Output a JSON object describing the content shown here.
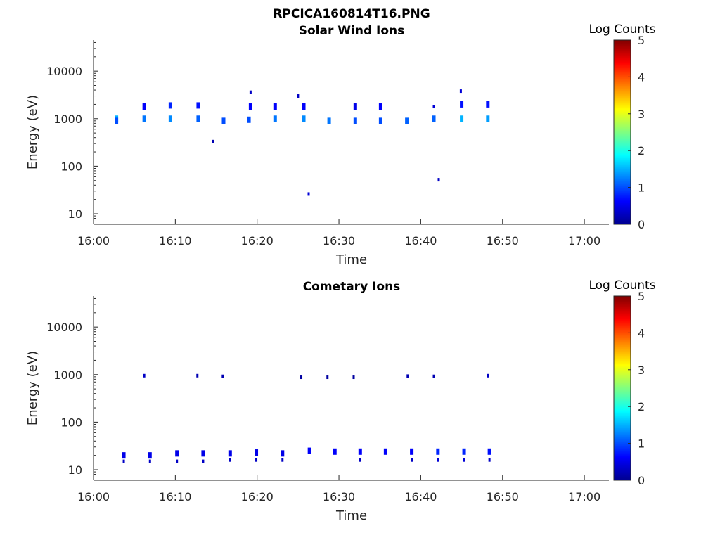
{
  "figure": {
    "title": "RPCICA160814T16.PNG",
    "colorbar_colors": [
      "#00008f",
      "#0000ff",
      "#0080ff",
      "#00ffff",
      "#80ff80",
      "#ffff00",
      "#ff8000",
      "#ff0000",
      "#800000"
    ]
  },
  "chart_data": [
    {
      "type": "heatmap",
      "title": "Solar Wind Ions",
      "xlabel": "Time",
      "ylabel": "Energy (eV)",
      "yscale": "log",
      "ylim": [
        6,
        45000
      ],
      "xlim": [
        "16:00",
        "17:03"
      ],
      "x_ticks": [
        "16:00",
        "16:10",
        "16:20",
        "16:30",
        "16:40",
        "16:50",
        "17:00"
      ],
      "y_ticks": [
        "10",
        "100",
        "1000",
        "10000"
      ],
      "colorbar": {
        "label": "Log Counts",
        "range": [
          0,
          5
        ],
        "ticks": [
          "0",
          "1",
          "2",
          "3",
          "4",
          "5"
        ]
      },
      "cells": [
        {
          "t": "16:02.8",
          "e": 1000,
          "v": 1.5
        },
        {
          "t": "16:02.8",
          "e": 900,
          "v": 1.0
        },
        {
          "t": "16:06.2",
          "e": 1000,
          "v": 1.2
        },
        {
          "t": "16:06.2",
          "e": 1800,
          "v": 0.6
        },
        {
          "t": "16:09.4",
          "e": 1000,
          "v": 1.3
        },
        {
          "t": "16:09.4",
          "e": 1900,
          "v": 0.8
        },
        {
          "t": "16:12.8",
          "e": 1000,
          "v": 1.1
        },
        {
          "t": "16:12.8",
          "e": 1900,
          "v": 0.7
        },
        {
          "t": "16:14.6",
          "e": 330,
          "v": 0.2
        },
        {
          "t": "16:15.9",
          "e": 900,
          "v": 1.0
        },
        {
          "t": "16:19.0",
          "e": 950,
          "v": 1.0
        },
        {
          "t": "16:19.2",
          "e": 1800,
          "v": 0.6
        },
        {
          "t": "16:19.2",
          "e": 3600,
          "v": 0.3
        },
        {
          "t": "16:22.2",
          "e": 1000,
          "v": 1.2
        },
        {
          "t": "16:22.2",
          "e": 1800,
          "v": 0.6
        },
        {
          "t": "16:25.0",
          "e": 3000,
          "v": 0.3
        },
        {
          "t": "16:25.7",
          "e": 1000,
          "v": 1.3
        },
        {
          "t": "16:25.7",
          "e": 1800,
          "v": 0.6
        },
        {
          "t": "16:26.3",
          "e": 26,
          "v": 0.4
        },
        {
          "t": "16:28.8",
          "e": 900,
          "v": 1.2
        },
        {
          "t": "16:32.0",
          "e": 900,
          "v": 1.0
        },
        {
          "t": "16:32.0",
          "e": 1800,
          "v": 0.5
        },
        {
          "t": "16:35.1",
          "e": 900,
          "v": 1.0
        },
        {
          "t": "16:35.1",
          "e": 1800,
          "v": 0.6
        },
        {
          "t": "16:38.3",
          "e": 900,
          "v": 1.1
        },
        {
          "t": "16:41.6",
          "e": 1000,
          "v": 1.1
        },
        {
          "t": "16:41.6",
          "e": 1800,
          "v": 0.4
        },
        {
          "t": "16:42.2",
          "e": 52,
          "v": 0.3
        },
        {
          "t": "16:45.0",
          "e": 1000,
          "v": 1.5
        },
        {
          "t": "16:45.0",
          "e": 2000,
          "v": 0.7
        },
        {
          "t": "16:44.9",
          "e": 3800,
          "v": 0.4
        },
        {
          "t": "16:48.2",
          "e": 1000,
          "v": 1.4
        },
        {
          "t": "16:48.2",
          "e": 2000,
          "v": 0.7
        }
      ]
    },
    {
      "type": "heatmap",
      "title": "Cometary Ions",
      "xlabel": "Time",
      "ylabel": "Energy (eV)",
      "yscale": "log",
      "ylim": [
        6,
        45000
      ],
      "xlim": [
        "16:00",
        "17:03"
      ],
      "x_ticks": [
        "16:00",
        "16:10",
        "16:20",
        "16:30",
        "16:40",
        "16:50",
        "17:00"
      ],
      "y_ticks": [
        "10",
        "100",
        "1000",
        "10000"
      ],
      "colorbar": {
        "label": "Log Counts",
        "range": [
          0,
          5
        ],
        "ticks": [
          "0",
          "1",
          "2",
          "3",
          "4",
          "5"
        ]
      },
      "cells": [
        {
          "t": "16:03.7",
          "e": 20,
          "v": 0.5
        },
        {
          "t": "16:03.7",
          "e": 15,
          "v": 0.3
        },
        {
          "t": "16:06.9",
          "e": 20,
          "v": 0.5
        },
        {
          "t": "16:06.9",
          "e": 15,
          "v": 0.3
        },
        {
          "t": "16:10.2",
          "e": 22,
          "v": 0.5
        },
        {
          "t": "16:10.2",
          "e": 15,
          "v": 0.3
        },
        {
          "t": "16:13.4",
          "e": 22,
          "v": 0.5
        },
        {
          "t": "16:13.4",
          "e": 15,
          "v": 0.3
        },
        {
          "t": "16:16.7",
          "e": 22,
          "v": 0.5
        },
        {
          "t": "16:16.7",
          "e": 16,
          "v": 0.3
        },
        {
          "t": "16:19.9",
          "e": 23,
          "v": 0.5
        },
        {
          "t": "16:19.9",
          "e": 16,
          "v": 0.3
        },
        {
          "t": "16:23.1",
          "e": 22,
          "v": 0.5
        },
        {
          "t": "16:23.1",
          "e": 16,
          "v": 0.3
        },
        {
          "t": "16:26.4",
          "e": 25,
          "v": 0.6
        },
        {
          "t": "16:29.5",
          "e": 24,
          "v": 0.6
        },
        {
          "t": "16:32.6",
          "e": 24,
          "v": 0.6
        },
        {
          "t": "16:32.6",
          "e": 16,
          "v": 0.3
        },
        {
          "t": "16:35.7",
          "e": 24,
          "v": 0.6
        },
        {
          "t": "16:38.9",
          "e": 24,
          "v": 0.6
        },
        {
          "t": "16:38.9",
          "e": 16,
          "v": 0.3
        },
        {
          "t": "16:42.1",
          "e": 24,
          "v": 0.8
        },
        {
          "t": "16:42.1",
          "e": 16,
          "v": 0.4
        },
        {
          "t": "16:45.3",
          "e": 24,
          "v": 0.8
        },
        {
          "t": "16:45.3",
          "e": 16,
          "v": 0.4
        },
        {
          "t": "16:48.4",
          "e": 24,
          "v": 0.7
        },
        {
          "t": "16:48.4",
          "e": 16,
          "v": 0.3
        },
        {
          "t": "16:06.2",
          "e": 950,
          "v": 0.3
        },
        {
          "t": "16:12.7",
          "e": 950,
          "v": 0.2
        },
        {
          "t": "16:15.8",
          "e": 920,
          "v": 0.2
        },
        {
          "t": "16:25.4",
          "e": 880,
          "v": 0.1
        },
        {
          "t": "16:28.6",
          "e": 880,
          "v": 0.1
        },
        {
          "t": "16:31.8",
          "e": 880,
          "v": 0.1
        },
        {
          "t": "16:38.4",
          "e": 930,
          "v": 0.2
        },
        {
          "t": "16:41.6",
          "e": 920,
          "v": 0.2
        },
        {
          "t": "16:48.2",
          "e": 950,
          "v": 0.3
        }
      ]
    }
  ]
}
